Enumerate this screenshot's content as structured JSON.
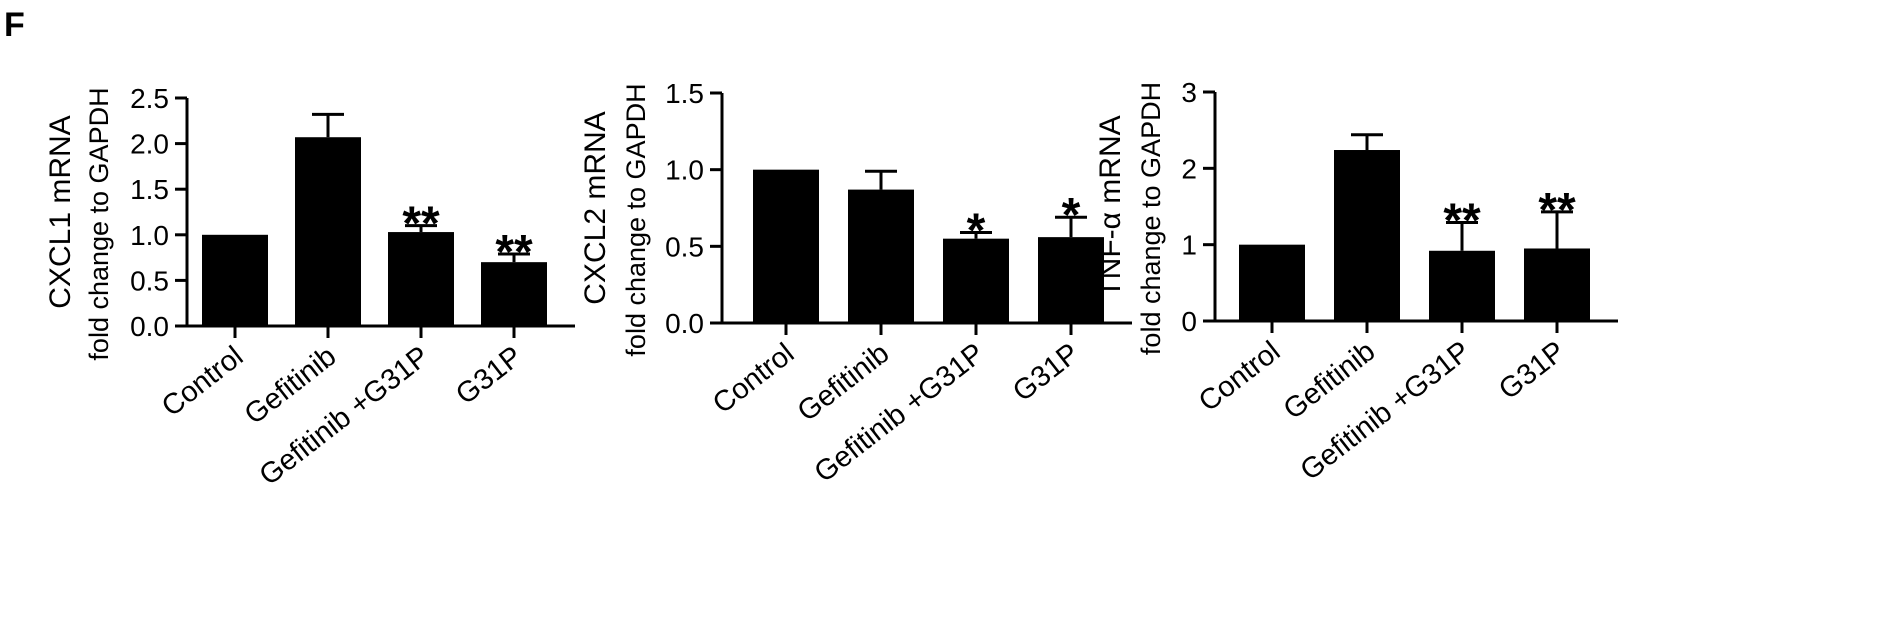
{
  "panel_label": "F",
  "chart_data": [
    {
      "type": "bar",
      "categories": [
        "Control",
        "Gefitinib",
        "Gefitinib +G31P",
        "G31P"
      ],
      "values": [
        1.0,
        2.07,
        1.03,
        0.7
      ],
      "errors": [
        0.0,
        0.25,
        0.07,
        0.09
      ],
      "significance": [
        "",
        "",
        "**",
        "**"
      ],
      "ylabel_line1": "CXCL1 mRNA",
      "ylabel_line2": "fold change to GAPDH",
      "ylim": [
        0,
        2.5
      ],
      "yticks": [
        0,
        0.5,
        1.0,
        1.5,
        2.0,
        2.5
      ],
      "ytick_labels": [
        "0.0",
        "0.5",
        "1.0",
        "1.5",
        "2.0",
        "2.5"
      ]
    },
    {
      "type": "bar",
      "categories": [
        "Control",
        "Gefitinib",
        "Gefitinib +G31P",
        "G31P"
      ],
      "values": [
        1.0,
        0.87,
        0.55,
        0.56
      ],
      "errors": [
        0.0,
        0.12,
        0.04,
        0.13
      ],
      "significance": [
        "",
        "",
        "*",
        "*"
      ],
      "ylabel_line1": "CXCL2 mRNA",
      "ylabel_line2": "fold change to GAPDH",
      "ylim": [
        0,
        1.5
      ],
      "yticks": [
        0,
        0.5,
        1.0,
        1.5
      ],
      "ytick_labels": [
        "0.0",
        "0.5",
        "1.0",
        "1.5"
      ]
    },
    {
      "type": "bar",
      "categories": [
        "Control",
        "Gefitinib",
        "Gefitinib +G31P",
        "G31P"
      ],
      "values": [
        1.0,
        2.24,
        0.92,
        0.95
      ],
      "errors": [
        0.0,
        0.2,
        0.37,
        0.48
      ],
      "significance": [
        "",
        "",
        "**",
        "**"
      ],
      "ylabel_line1": "TNF-α mRNA",
      "ylabel_line2": "fold change to GAPDH",
      "ylim": [
        0,
        3
      ],
      "yticks": [
        0,
        1,
        2,
        3
      ],
      "ytick_labels": [
        "0",
        "1",
        "2",
        "3"
      ]
    }
  ]
}
